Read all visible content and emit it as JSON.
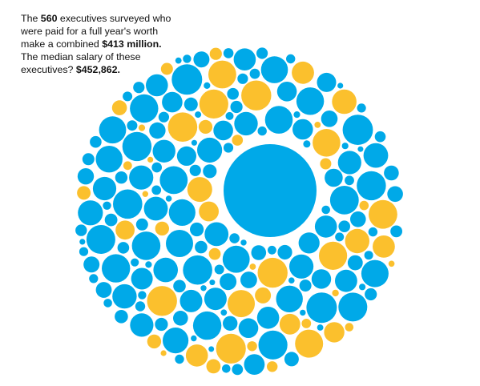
{
  "caption": {
    "part1": "The ",
    "count": "560",
    "part2": " executives surveyed who were paid for a full year's worth make a combined ",
    "total": "$413 million.",
    "part3": " The median salary of these executives? ",
    "median": "$452,862."
  },
  "colors": {
    "primary": "#00a9e8",
    "accent": "#fbc02d",
    "background": "#ffffff"
  },
  "chart_data": {
    "type": "packed-bubble",
    "title": "",
    "n_circles": 560,
    "combined_total": "$413 million",
    "median_salary": "$452,862",
    "series": [
      {
        "color": "#00a9e8",
        "role": "majority"
      },
      {
        "color": "#fbc02d",
        "role": "highlighted"
      }
    ],
    "note": "Circle area is proportional to executive compensation; one large outlier sits near the center of the packed disc."
  }
}
